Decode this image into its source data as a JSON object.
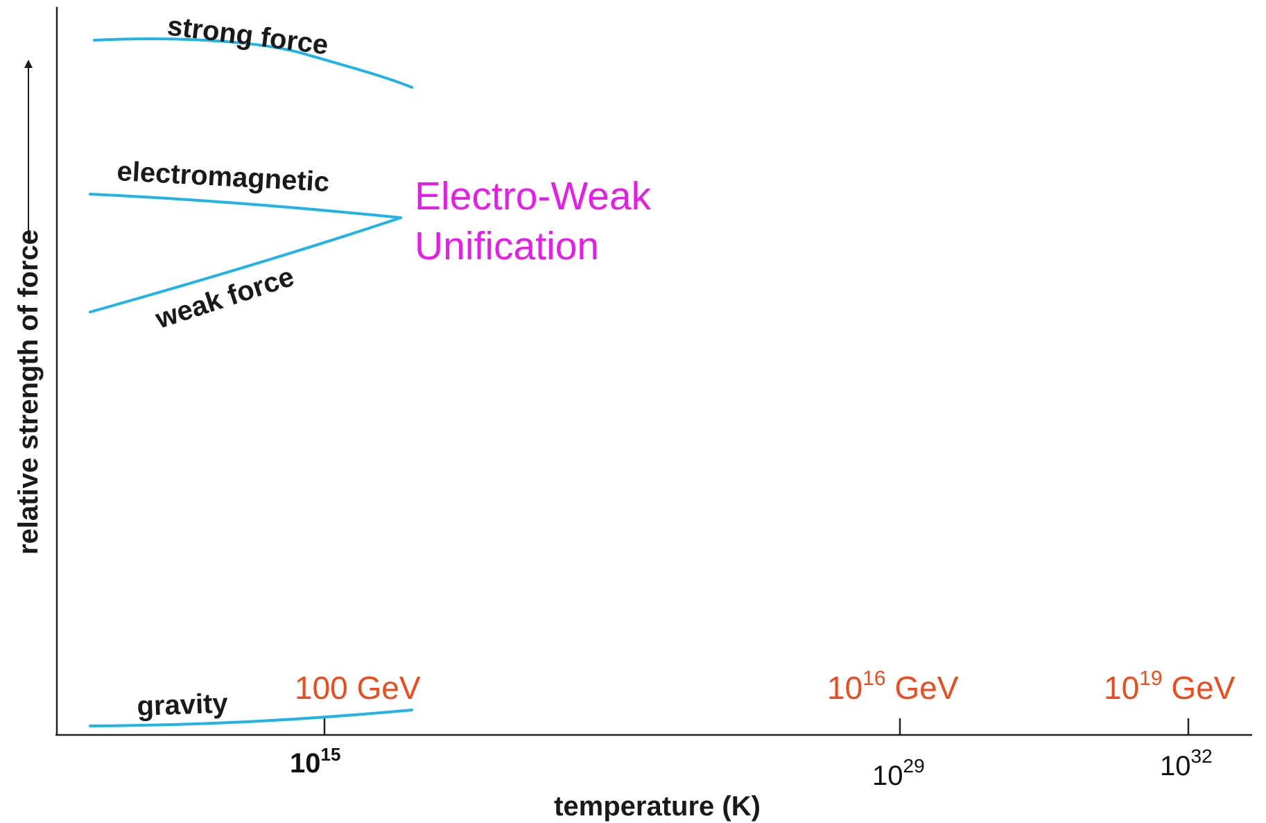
{
  "chart_data": {
    "type": "line",
    "xlabel": "temperature (K)",
    "ylabel": "relative strength of force",
    "xscale": "log",
    "grid": false,
    "legend": "none",
    "x_ticks": [
      {
        "value": 1000000000000000.0,
        "base": "10",
        "exp": "15",
        "energy_base": "100 GeV",
        "energy_exp": "",
        "energy_unit": ""
      },
      {
        "value": 1e+29,
        "base": "10",
        "exp": "29",
        "energy_base": "10",
        "energy_exp": "16",
        "energy_unit": " GeV"
      },
      {
        "value": 1e+32,
        "base": "10",
        "exp": "32",
        "energy_base": "10",
        "energy_exp": "19",
        "energy_unit": " GeV"
      }
    ],
    "series": [
      {
        "name": "strong force"
      },
      {
        "name": "electromagnetic"
      },
      {
        "name": "weak force"
      },
      {
        "name": "gravity"
      }
    ],
    "annotations": [
      {
        "lines": [
          "Electro-Weak",
          "Unification"
        ]
      }
    ],
    "colors": {
      "curves": "#1fb3e6",
      "energy_ticks": "#ee4a1c",
      "annotation": "#e81ce8"
    }
  }
}
